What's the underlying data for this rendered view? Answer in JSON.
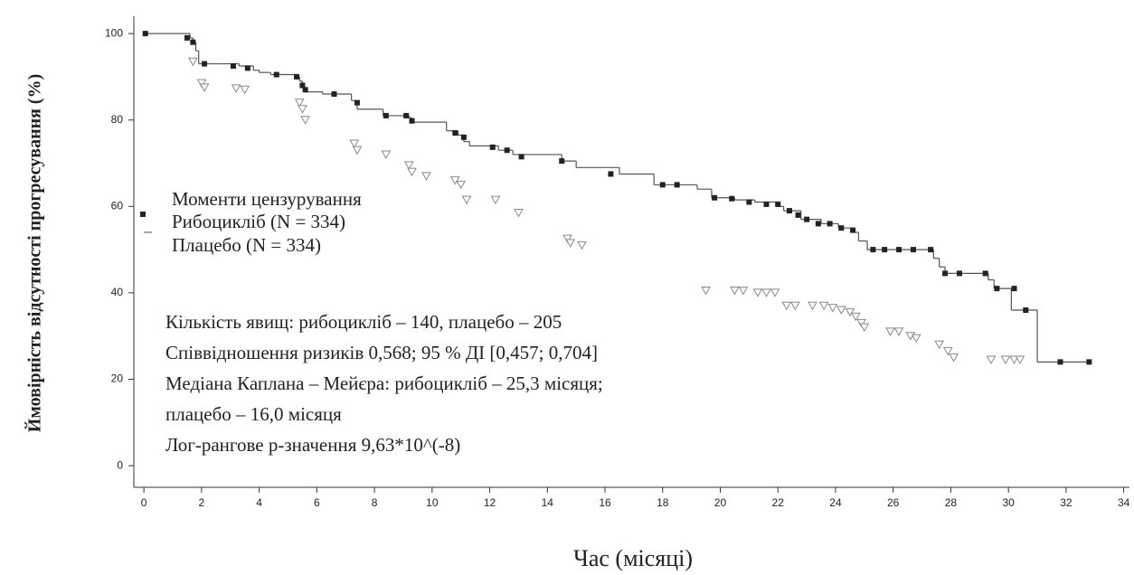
{
  "chart_data": {
    "type": "km",
    "x_label": "Час (місяці)",
    "y_label": "Ймовірність відсутності прогресування (%)",
    "legend_title": "Моменти цензурування",
    "xlim": [
      -0.35,
      34.2
    ],
    "ylim": [
      -5,
      104
    ],
    "xticks": [
      0,
      2,
      4,
      6,
      8,
      10,
      12,
      14,
      16,
      18,
      20,
      22,
      24,
      26,
      28,
      30,
      32,
      34
    ],
    "yticks": [
      0,
      20,
      40,
      60,
      80,
      100
    ],
    "series": [
      {
        "name": "Рибоцикліб (N = 334)",
        "color": "#222222",
        "marker": "square",
        "x": [
          0,
          1.6,
          1.7,
          1.8,
          1.9,
          3.3,
          3.8,
          4.0,
          4.4,
          5.3,
          5.4,
          5.5,
          5.6,
          6.2,
          7.2,
          7.4,
          8.3,
          9.2,
          9.3,
          10.5,
          10.9,
          11.1,
          11.3,
          12.3,
          12.8,
          14.5,
          15.0,
          16.5,
          17.7,
          19.2,
          19.7,
          20.5,
          21.2,
          22.0,
          22.2,
          22.8,
          23.5,
          24.1,
          24.6,
          24.8,
          25.1,
          27.4,
          27.6,
          27.8,
          29.3,
          29.5,
          30.1,
          31.0,
          32.8
        ],
        "values": [
          100,
          99,
          98,
          96,
          93,
          92.5,
          91.5,
          91,
          90.5,
          90,
          89,
          87.5,
          86.5,
          86,
          84.5,
          82.5,
          81,
          80.5,
          79.5,
          77.5,
          76.5,
          75,
          74,
          73,
          72,
          70.5,
          69,
          67.5,
          65,
          64,
          62,
          61.5,
          61,
          60,
          59,
          57,
          56,
          55,
          54,
          52,
          50,
          48,
          46,
          44.5,
          43,
          41,
          36,
          24,
          24
        ],
        "censor_x": [
          0.05,
          1.5,
          1.7,
          2.1,
          3.1,
          3.6,
          4.6,
          5.3,
          5.5,
          5.6,
          6.6,
          7.4,
          8.4,
          9.1,
          9.3,
          10.8,
          11.1,
          12.1,
          12.6,
          13.1,
          14.5,
          16.2,
          18.0,
          18.5,
          19.8,
          20.4,
          21.0,
          21.6,
          22.0,
          22.4,
          22.7,
          23.0,
          23.4,
          23.8,
          24.2,
          24.6,
          25.3,
          25.7,
          26.2,
          26.7,
          27.3,
          27.8,
          28.3,
          29.2,
          29.6,
          30.2,
          30.6,
          31.8,
          32.8
        ],
        "censor_values": [
          100,
          99,
          98,
          93,
          92.5,
          92,
          90.5,
          90,
          88,
          87,
          86,
          84,
          81,
          81,
          79.8,
          77,
          76,
          73.7,
          73,
          71.5,
          70.5,
          67.5,
          65,
          65,
          62,
          61.8,
          61,
          60.5,
          60.5,
          59,
          58,
          57,
          56,
          56,
          55,
          54.5,
          50,
          50,
          50,
          50,
          50,
          44.5,
          44.5,
          44.5,
          41,
          41,
          36,
          24,
          24
        ]
      },
      {
        "name": "Плацебо (N = 334)",
        "color": "#888888",
        "marker": "triangle",
        "censor_x": [
          1.7,
          2.0,
          2.1,
          3.2,
          3.5,
          5.4,
          5.5,
          5.6,
          7.3,
          7.4,
          8.4,
          9.2,
          9.3,
          9.8,
          10.8,
          11.0,
          11.2,
          12.2,
          13.0,
          14.7,
          14.8,
          15.2,
          19.5,
          20.5,
          20.8,
          21.3,
          21.6,
          21.9,
          22.3,
          22.6,
          23.2,
          23.6,
          23.9,
          24.2,
          24.5,
          24.7,
          24.9,
          25.0,
          25.9,
          26.2,
          26.6,
          26.8,
          27.6,
          27.9,
          28.1,
          29.4,
          29.9,
          30.2,
          30.4
        ],
        "censor_values": [
          93.5,
          88.5,
          87.5,
          87.3,
          87,
          84,
          82.5,
          80,
          74.5,
          73,
          72,
          69.5,
          68,
          67,
          66,
          65,
          61.5,
          61.5,
          58.5,
          52.5,
          51.5,
          51,
          40.5,
          40.5,
          40.5,
          40,
          40,
          40,
          37,
          37,
          37,
          37,
          36.5,
          36,
          35.5,
          34.5,
          33,
          32,
          31,
          31,
          30,
          29.5,
          28,
          26.5,
          25,
          24.5,
          24.5,
          24.5,
          24.5
        ]
      }
    ],
    "annotations": [
      "Кількість явищ: рибоцикліб – 140, плацебо – 205",
      "Співвідношення ризиків 0,568; 95 % ДІ [0,457; 0,704]",
      "Медіана Каплана – Мейєра: рибоцикліб – 25,3 місяця;",
      "плацебо – 16,0 місяця",
      "Лог-рангове p-значення 9,63*10^(-8)"
    ]
  }
}
